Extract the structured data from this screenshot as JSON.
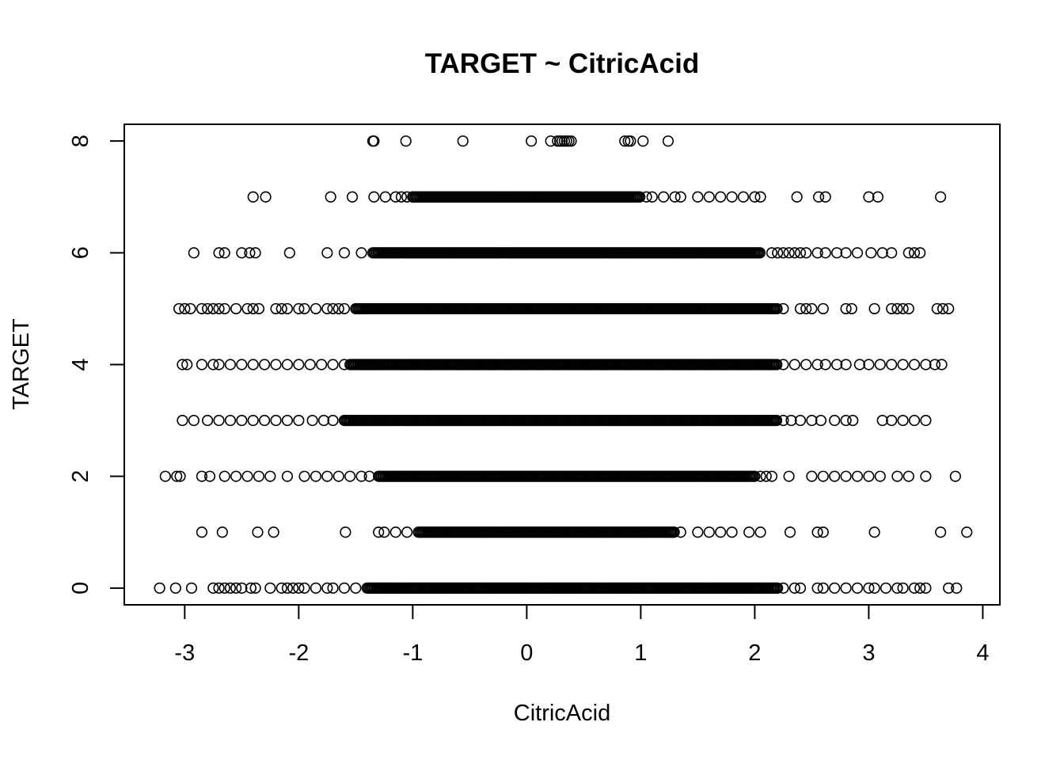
{
  "chart_data": {
    "type": "scatter",
    "title": "TARGET ~ CitricAcid",
    "xlabel": "CitricAcid",
    "ylabel": "TARGET",
    "xlim": [
      -3.53,
      4.15
    ],
    "ylim": [
      -0.3,
      8.3
    ],
    "xticks": [
      -3,
      -2,
      -1,
      0,
      1,
      2,
      3,
      4
    ],
    "yticks": [
      0,
      2,
      4,
      6,
      8
    ],
    "grid": false,
    "legend": "none",
    "marker": "open-circle",
    "point_color": "#000000",
    "rows": [
      {
        "y": 8,
        "dense_range": null,
        "outliers": [
          -1.35,
          -1.34,
          -1.06,
          -0.56,
          0.04,
          0.21,
          0.27,
          0.29,
          0.31,
          0.33,
          0.35,
          0.37,
          0.39,
          0.86,
          0.89,
          0.91,
          1.02,
          1.24
        ]
      },
      {
        "y": 7,
        "dense_range": [
          -1.0,
          1.0
        ],
        "outliers": [
          -2.4,
          -2.29,
          -1.72,
          -1.53,
          -1.34,
          -1.24,
          -1.15,
          -1.1,
          -1.05,
          -1.0,
          1.05,
          1.1,
          1.2,
          1.3,
          1.35,
          1.5,
          1.6,
          1.7,
          1.8,
          1.9,
          2.0,
          2.05,
          2.37,
          2.56,
          2.62,
          3.0,
          3.08,
          3.63
        ]
      },
      {
        "y": 6,
        "dense_range": [
          -1.35,
          2.05
        ],
        "outliers": [
          -2.92,
          -2.7,
          -2.65,
          -2.5,
          -2.43,
          -2.38,
          -2.08,
          -1.75,
          -1.6,
          -1.45,
          2.15,
          2.2,
          2.25,
          2.3,
          2.35,
          2.4,
          2.45,
          2.55,
          2.62,
          2.72,
          2.8,
          2.9,
          3.02,
          3.12,
          3.2,
          3.35,
          3.4,
          3.45
        ]
      },
      {
        "y": 5,
        "dense_range": [
          -1.5,
          2.2
        ],
        "outliers": [
          -3.05,
          -3.0,
          -2.95,
          -2.85,
          -2.8,
          -2.75,
          -2.7,
          -2.65,
          -2.55,
          -2.45,
          -2.4,
          -2.35,
          -2.2,
          -2.15,
          -2.1,
          -2.0,
          -1.95,
          -1.85,
          -1.75,
          -1.7,
          -1.65,
          -1.6,
          2.25,
          2.4,
          2.45,
          2.5,
          2.6,
          2.8,
          2.85,
          3.05,
          3.2,
          3.25,
          3.3,
          3.35,
          3.6,
          3.65,
          3.7
        ]
      },
      {
        "y": 4,
        "dense_range": [
          -1.55,
          2.2
        ],
        "outliers": [
          -3.02,
          -2.98,
          -2.85,
          -2.75,
          -2.7,
          -2.6,
          -2.5,
          -2.4,
          -2.3,
          -2.2,
          -2.1,
          -2.0,
          -1.9,
          -1.8,
          -1.7,
          -1.6,
          2.25,
          2.35,
          2.45,
          2.55,
          2.62,
          2.72,
          2.8,
          2.92,
          3.0,
          3.1,
          3.2,
          3.3,
          3.4,
          3.5,
          3.58,
          3.64
        ]
      },
      {
        "y": 3,
        "dense_range": [
          -1.6,
          2.2
        ],
        "outliers": [
          -3.02,
          -2.92,
          -2.8,
          -2.7,
          -2.6,
          -2.5,
          -2.4,
          -2.3,
          -2.2,
          -2.1,
          -2.0,
          -1.88,
          -1.78,
          -1.7,
          2.25,
          2.32,
          2.4,
          2.5,
          2.58,
          2.7,
          2.8,
          2.86,
          3.12,
          3.2,
          3.3,
          3.4,
          3.5
        ]
      },
      {
        "y": 2,
        "dense_range": [
          -1.3,
          2.0
        ],
        "outliers": [
          -3.17,
          -3.07,
          -3.04,
          -2.85,
          -2.78,
          -2.65,
          -2.55,
          -2.45,
          -2.35,
          -2.25,
          -2.1,
          -1.95,
          -1.85,
          -1.75,
          -1.65,
          -1.55,
          -1.45,
          -1.38,
          2.05,
          2.1,
          2.15,
          2.3,
          2.5,
          2.6,
          2.7,
          2.8,
          2.9,
          3.0,
          3.1,
          3.25,
          3.35,
          3.5,
          3.76
        ]
      },
      {
        "y": 1,
        "dense_range": [
          -0.95,
          1.3
        ],
        "outliers": [
          -2.85,
          -2.67,
          -2.36,
          -2.22,
          -1.59,
          -1.3,
          -1.25,
          -1.15,
          -1.05,
          1.35,
          1.5,
          1.6,
          1.7,
          1.8,
          1.95,
          2.05,
          2.31,
          2.55,
          2.6,
          3.05,
          3.63,
          3.86
        ]
      },
      {
        "y": 0,
        "dense_range": [
          -1.4,
          2.2
        ],
        "outliers": [
          -3.22,
          -3.08,
          -2.94,
          -2.75,
          -2.7,
          -2.65,
          -2.6,
          -2.55,
          -2.5,
          -2.42,
          -2.38,
          -2.25,
          -2.15,
          -2.1,
          -2.05,
          -2.0,
          -1.95,
          -1.85,
          -1.75,
          -1.7,
          -1.6,
          -1.5,
          2.25,
          2.35,
          2.4,
          2.55,
          2.6,
          2.7,
          2.8,
          2.9,
          3.0,
          3.05,
          3.15,
          3.25,
          3.3,
          3.4,
          3.45,
          3.5,
          3.7,
          3.77
        ]
      }
    ]
  }
}
